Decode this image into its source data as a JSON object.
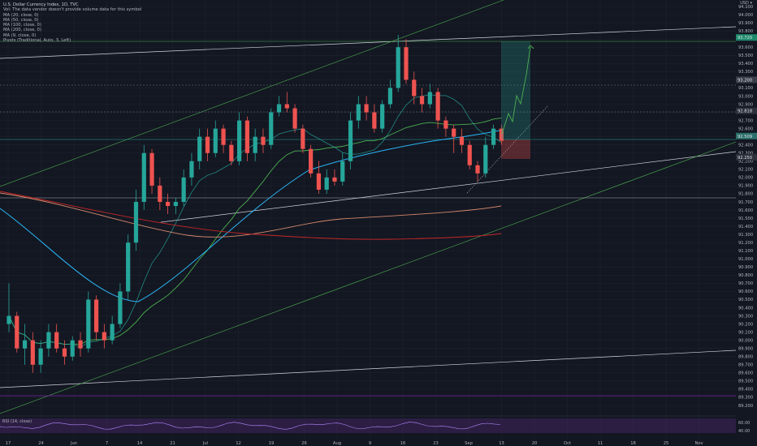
{
  "legend": {
    "title": "U.S. Dollar Currency Index, 1D, TVC",
    "lines": [
      "Vol: The data vendor doesn't provide volume data for this symbol",
      "MA (20, close, 0)",
      "MA (50, close, 0)",
      "MA (100, close, 0)",
      "MA (200, close, 0)",
      "MA (9, close, 0)",
      "Pivots (Traditional, Auto, 3, Left)"
    ]
  },
  "currency": "USD ▾",
  "rsi_label": "RSI (14, close)",
  "colors": {
    "background": "#131722",
    "up": "#26a69a",
    "down": "#ef5350",
    "ma20": "#4caf50",
    "ma50": "#29b6f6",
    "ma100": "#d4886c",
    "ma200": "#c62828",
    "ma9": "#26a69a",
    "rsi_band": "#5b2c82"
  },
  "chart_data": {
    "type": "candlestick",
    "price_range": [
      89.1,
      94.18
    ],
    "y_ticks": [
      "94.100",
      "94.000",
      "93.900",
      "93.800",
      "93.700",
      "93.600",
      "93.500",
      "93.400",
      "93.300",
      "93.200",
      "93.100",
      "93.000",
      "92.900",
      "92.800",
      "92.700",
      "92.600",
      "92.500",
      "92.400",
      "92.300",
      "92.200",
      "92.100",
      "92.000",
      "91.900",
      "91.800",
      "91.700",
      "91.600",
      "91.500",
      "91.400",
      "91.300",
      "91.200",
      "91.100",
      "91.000",
      "90.900",
      "90.800",
      "90.700",
      "90.600",
      "90.500",
      "90.400",
      "90.300",
      "90.200",
      "90.100",
      "90.000",
      "89.900",
      "89.800",
      "89.700",
      "89.600",
      "89.500",
      "89.400",
      "89.300",
      "89.200"
    ],
    "x_ticks": [
      "17",
      "24",
      "Jun",
      "7",
      "14",
      "21",
      "Jul",
      "12",
      "19",
      "26",
      "Aug",
      "9",
      "16",
      "23",
      "Sep",
      "13",
      "20",
      "Oct",
      "11",
      "18",
      "25",
      "Nov"
    ],
    "price_labels": [
      "93.720",
      "93.200",
      "92.818",
      "92.509",
      "92.250"
    ],
    "rsi_ticks": [
      "60.00",
      "40.00"
    ],
    "candles": [
      [
        90.2,
        90.7,
        90.1,
        90.3
      ],
      [
        90.3,
        90.35,
        89.85,
        89.9
      ],
      [
        89.9,
        90.2,
        89.7,
        90.0
      ],
      [
        90.0,
        90.1,
        89.6,
        89.7
      ],
      [
        89.7,
        90.0,
        89.6,
        89.9
      ],
      [
        89.9,
        90.2,
        89.8,
        90.1
      ],
      [
        90.1,
        90.2,
        89.85,
        89.9
      ],
      [
        89.9,
        90.0,
        89.7,
        89.8
      ],
      [
        89.8,
        90.05,
        89.75,
        90.0
      ],
      [
        90.0,
        90.1,
        89.8,
        89.9
      ],
      [
        89.9,
        90.6,
        89.85,
        90.5
      ],
      [
        90.5,
        90.55,
        90.0,
        90.1
      ],
      [
        90.1,
        90.2,
        89.9,
        90.0
      ],
      [
        90.0,
        90.3,
        89.95,
        90.2
      ],
      [
        90.2,
        90.7,
        90.15,
        90.6
      ],
      [
        90.6,
        91.3,
        90.5,
        91.2
      ],
      [
        91.2,
        91.85,
        91.1,
        91.7
      ],
      [
        91.7,
        92.4,
        91.6,
        92.3
      ],
      [
        92.3,
        92.35,
        91.8,
        91.9
      ],
      [
        91.9,
        92.0,
        91.6,
        91.7
      ],
      [
        91.7,
        91.8,
        91.55,
        91.65
      ],
      [
        91.65,
        91.75,
        91.55,
        91.7
      ],
      [
        91.7,
        92.1,
        91.65,
        92.0
      ],
      [
        92.0,
        92.3,
        91.9,
        92.2
      ],
      [
        92.2,
        92.6,
        92.1,
        92.5
      ],
      [
        92.5,
        92.6,
        92.2,
        92.3
      ],
      [
        92.3,
        92.7,
        92.25,
        92.6
      ],
      [
        92.6,
        92.65,
        92.3,
        92.4
      ],
      [
        92.4,
        92.45,
        92.15,
        92.2
      ],
      [
        92.2,
        92.8,
        92.15,
        92.7
      ],
      [
        92.7,
        92.75,
        92.2,
        92.3
      ],
      [
        92.3,
        92.6,
        92.2,
        92.5
      ],
      [
        92.5,
        92.6,
        92.3,
        92.4
      ],
      [
        92.4,
        92.85,
        92.35,
        92.8
      ],
      [
        92.8,
        93.0,
        92.75,
        92.9
      ],
      [
        92.9,
        93.05,
        92.8,
        92.85
      ],
      [
        92.85,
        92.9,
        92.55,
        92.6
      ],
      [
        92.6,
        92.65,
        92.3,
        92.35
      ],
      [
        92.35,
        92.4,
        92.0,
        92.05
      ],
      [
        92.05,
        92.2,
        91.8,
        91.85
      ],
      [
        91.85,
        92.1,
        91.8,
        92.0
      ],
      [
        92.0,
        92.1,
        91.9,
        91.95
      ],
      [
        91.95,
        92.3,
        91.9,
        92.2
      ],
      [
        92.2,
        92.8,
        92.1,
        92.7
      ],
      [
        92.7,
        93.0,
        92.6,
        92.9
      ],
      [
        92.9,
        93.0,
        92.7,
        92.8
      ],
      [
        92.8,
        92.9,
        92.55,
        92.6
      ],
      [
        92.6,
        92.95,
        92.55,
        92.9
      ],
      [
        92.9,
        93.2,
        92.85,
        93.1
      ],
      [
        93.1,
        93.75,
        93.05,
        93.6
      ],
      [
        93.6,
        93.7,
        93.15,
        93.2
      ],
      [
        93.2,
        93.3,
        92.9,
        93.0
      ],
      [
        93.0,
        93.1,
        92.8,
        92.9
      ],
      [
        92.9,
        93.15,
        92.85,
        93.05
      ],
      [
        93.05,
        93.1,
        92.6,
        92.7
      ],
      [
        92.7,
        92.75,
        92.5,
        92.6
      ],
      [
        92.6,
        92.65,
        92.3,
        92.5
      ],
      [
        92.5,
        92.6,
        92.3,
        92.4
      ],
      [
        92.4,
        92.45,
        92.1,
        92.15
      ],
      [
        92.15,
        92.2,
        91.95,
        92.05
      ],
      [
        92.05,
        92.5,
        92.0,
        92.4
      ],
      [
        92.4,
        92.65,
        92.35,
        92.6
      ],
      [
        92.6,
        92.65,
        92.4,
        92.45
      ]
    ],
    "projection": [
      [
        92.5,
        92.6
      ],
      [
        92.5,
        92.9
      ],
      [
        92.75,
        93.2
      ],
      [
        93.1,
        93.65
      ]
    ]
  }
}
